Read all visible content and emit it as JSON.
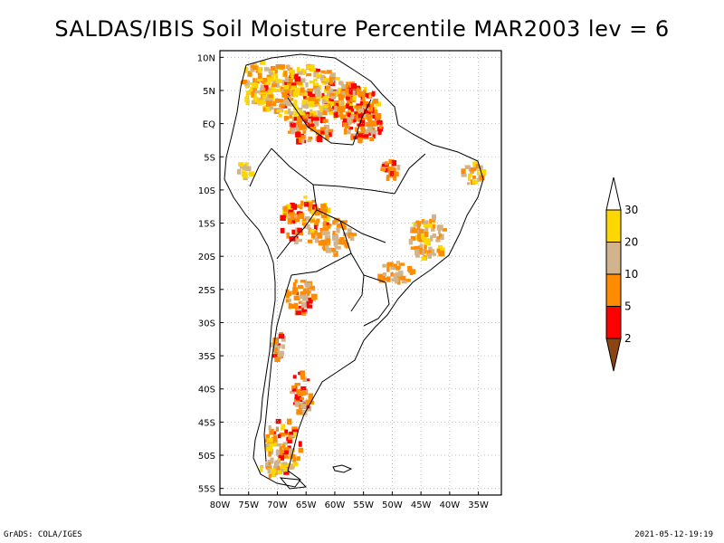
{
  "title": "SALDAS/IBIS Soil Moisture Percentile MAR2003 lev = 6",
  "map": {
    "region": "South America",
    "lon_range": [
      -80,
      -31
    ],
    "lat_range": [
      -56,
      11
    ],
    "lat_ticks": [
      {
        "value": 10,
        "label": "10N"
      },
      {
        "value": 5,
        "label": "5N"
      },
      {
        "value": 0,
        "label": "EQ"
      },
      {
        "value": -5,
        "label": "5S"
      },
      {
        "value": -10,
        "label": "10S"
      },
      {
        "value": -15,
        "label": "15S"
      },
      {
        "value": -20,
        "label": "20S"
      },
      {
        "value": -25,
        "label": "25S"
      },
      {
        "value": -30,
        "label": "30S"
      },
      {
        "value": -35,
        "label": "35S"
      },
      {
        "value": -40,
        "label": "40S"
      },
      {
        "value": -45,
        "label": "45S"
      },
      {
        "value": -50,
        "label": "50S"
      },
      {
        "value": -55,
        "label": "55S"
      }
    ],
    "lon_ticks": [
      {
        "value": -80,
        "label": "80W"
      },
      {
        "value": -75,
        "label": "75W"
      },
      {
        "value": -70,
        "label": "70W"
      },
      {
        "value": -65,
        "label": "65W"
      },
      {
        "value": -60,
        "label": "60W"
      },
      {
        "value": -55,
        "label": "55W"
      },
      {
        "value": -50,
        "label": "50W"
      },
      {
        "value": -45,
        "label": "45W"
      },
      {
        "value": -40,
        "label": "40W"
      },
      {
        "value": -35,
        "label": "35W"
      }
    ],
    "grid": true
  },
  "colorbar": {
    "levels": [
      "2",
      "5",
      "10",
      "20",
      "30"
    ],
    "colors": [
      "#8b4513",
      "#ff0000",
      "#ff8c00",
      "#d2b48c",
      "#ffd700",
      "#ffffff"
    ]
  },
  "footer": {
    "left": "GrADS: COLA/IGES",
    "right": "2021-05-12-19:19"
  }
}
